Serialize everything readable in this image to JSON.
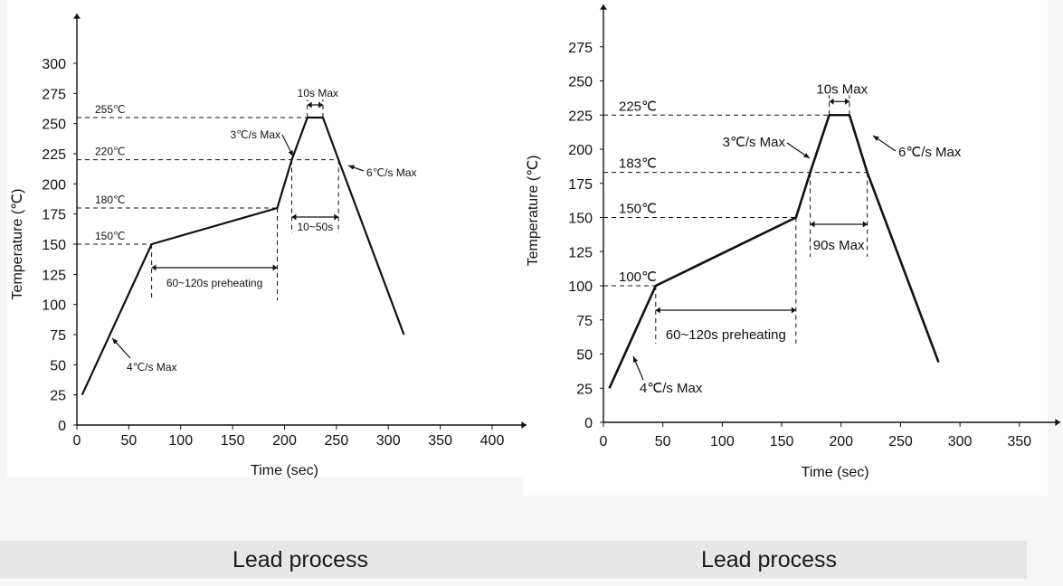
{
  "captions": {
    "left": "Lead process",
    "right": "Lead process"
  },
  "chart_data": [
    {
      "type": "line",
      "xlabel": "Time (sec)",
      "ylabel": "Temperature (℃)",
      "xlim": [
        0,
        420
      ],
      "ylim": [
        0,
        300
      ],
      "xticks": [
        0,
        50,
        100,
        150,
        200,
        250,
        300,
        350,
        400
      ],
      "yticks": [
        0,
        25,
        50,
        75,
        100,
        125,
        150,
        175,
        200,
        225,
        250,
        275,
        300
      ],
      "series": [
        {
          "x": [
            5,
            72,
            193,
            207,
            222,
            237,
            252,
            315
          ],
          "y": [
            25,
            150,
            180,
            220,
            255,
            255,
            220,
            75
          ]
        }
      ],
      "reference_levels": [
        {
          "label": "255℃",
          "y": 255
        },
        {
          "label": "220℃",
          "y": 220
        },
        {
          "label": "180℃",
          "y": 180
        },
        {
          "label": "150℃",
          "y": 150
        }
      ],
      "annotations": {
        "peak_time": "10s Max",
        "ramp_up_peak": "3℃/s Max",
        "ramp_down": "6℃/s Max",
        "time_above": "10~50s",
        "preheat": "60~120s preheating",
        "ramp_up": "4℃/s Max"
      }
    },
    {
      "type": "line",
      "xlabel": "Time (sec)",
      "ylabel": "Temperature (℃)",
      "xlim": [
        0,
        370
      ],
      "ylim": [
        0,
        290
      ],
      "xticks": [
        0,
        50,
        100,
        150,
        200,
        250,
        300,
        350
      ],
      "yticks": [
        0,
        25,
        50,
        75,
        100,
        125,
        150,
        175,
        200,
        225,
        250,
        275
      ],
      "series": [
        {
          "x": [
            5,
            44,
            162,
            174,
            190,
            207,
            222,
            282
          ],
          "y": [
            25,
            100,
            150,
            183,
            225,
            225,
            183,
            44
          ]
        }
      ],
      "reference_levels": [
        {
          "label": "225℃",
          "y": 225
        },
        {
          "label": "183℃",
          "y": 183
        },
        {
          "label": "150℃",
          "y": 150
        },
        {
          "label": "100℃",
          "y": 100
        }
      ],
      "annotations": {
        "peak_time": "10s Max",
        "ramp_up_peak": "3℃/s Max",
        "ramp_down": "6℃/s Max",
        "time_above": "90s Max",
        "preheat": "60~120s preheating",
        "ramp_up": "4℃/s Max"
      }
    }
  ]
}
